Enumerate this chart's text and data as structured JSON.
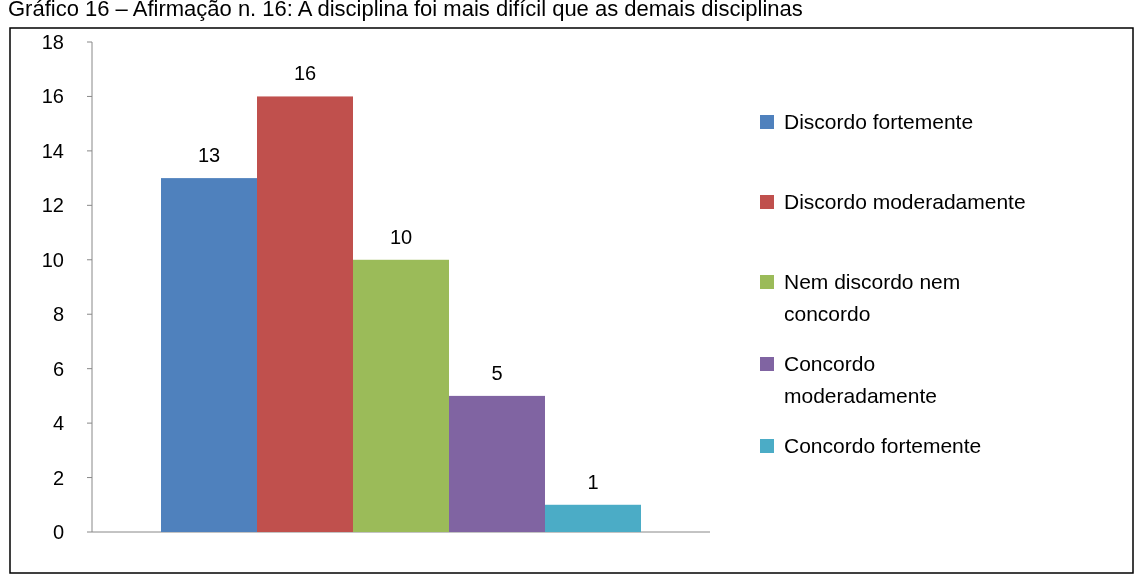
{
  "chart_data": {
    "type": "bar",
    "title": "Gráfico 16 – Afirmação n. 16: A disciplina foi mais difícil que as demais disciplinas",
    "categories": [
      null
    ],
    "series": [
      {
        "name": "Discordo fortemente",
        "color": "#4f81bd",
        "values": [
          13
        ]
      },
      {
        "name": "Discordo moderadamente",
        "color": "#c0504d",
        "values": [
          16
        ]
      },
      {
        "name": "Nem discordo nem concordo",
        "color": "#9bbb59",
        "values": [
          10
        ]
      },
      {
        "name": "Concordo moderadamente",
        "color": "#8064a2",
        "values": [
          5
        ]
      },
      {
        "name": "Concordo fortemente",
        "color": "#4bacc6",
        "values": [
          1
        ]
      }
    ],
    "ylim": [
      0,
      18
    ],
    "yticks": [
      0,
      2,
      4,
      6,
      8,
      10,
      12,
      14,
      16,
      18
    ],
    "legend": "right",
    "data_labels": true
  }
}
